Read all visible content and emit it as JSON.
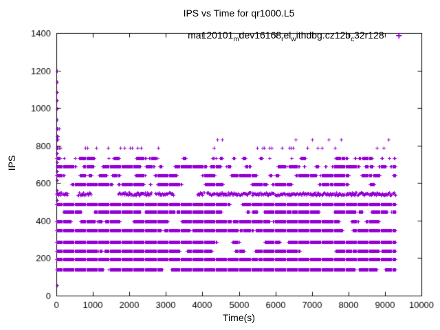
{
  "page": {
    "background": "#ffffff"
  },
  "chart_data": {
    "type": "scatter",
    "title": "IPS vs Time for qr1000.L5",
    "xlabel": "Time(s)",
    "ylabel": "IPS",
    "xlim": [
      0,
      10000
    ],
    "ylim": [
      0,
      1400
    ],
    "xticks": [
      0,
      1000,
      2000,
      3000,
      4000,
      5000,
      6000,
      7000,
      8000,
      9000,
      10000
    ],
    "yticks": [
      0,
      200,
      400,
      600,
      800,
      1000,
      1200,
      1400
    ],
    "grid": false,
    "ticks_mirrored": true,
    "marker": "plus",
    "marker_color": "#9400D3",
    "axis_color": "#000000",
    "legend": {
      "position": "top-right-inside",
      "plain_text": "ma120101_mdev16168_rel_withdbg.cz12b_c32r128",
      "marker_glyph": "+",
      "segments": [
        {
          "text": "ma120101"
        },
        {
          "text": "m",
          "sub": true
        },
        {
          "text": "dev16168"
        },
        {
          "text": "r",
          "sub": true
        },
        {
          "text": "el"
        },
        {
          "text": "w",
          "sub": true
        },
        {
          "text": "ithdbg.cz12b"
        },
        {
          "text": "c",
          "sub": true
        },
        {
          "text": "32r128"
        }
      ]
    },
    "series": {
      "name": "ma120101_mdev16168_rel_withdbg.cz12b_c32r128",
      "t_start": 0,
      "t_max": 9280,
      "sample_step_s": 20,
      "bands": [
        {
          "ips": 139,
          "coverage": 0.8
        },
        {
          "ips": 194,
          "coverage": 0.95
        },
        {
          "ips": 238,
          "coverage": 0.82
        },
        {
          "ips": 286,
          "coverage": 0.84
        },
        {
          "ips": 348,
          "coverage": 0.86
        },
        {
          "ips": 396,
          "coverage": 0.85
        },
        {
          "ips": 447,
          "coverage": 0.87
        },
        {
          "ips": 487,
          "coverage": 0.9
        },
        {
          "ips": 542,
          "coverage": 0.85,
          "jitter_ips": 8
        },
        {
          "ips": 594,
          "coverage": 0.68
        },
        {
          "ips": 641,
          "coverage": 0.55
        },
        {
          "ips": 689,
          "coverage": 0.42
        },
        {
          "ips": 733,
          "coverage": 0.3
        },
        {
          "ips": 788,
          "count": 27
        },
        {
          "ips": 832,
          "count": 7
        }
      ],
      "startup_spike_points": [
        {
          "t": 15,
          "ips": 55
        },
        {
          "t": 12,
          "ips": 510
        },
        {
          "t": 12,
          "ips": 560
        },
        {
          "t": 12,
          "ips": 615
        },
        {
          "t": 12,
          "ips": 662
        },
        {
          "t": 12,
          "ips": 710
        },
        {
          "t": 12,
          "ips": 758
        },
        {
          "t": 12,
          "ips": 788
        },
        {
          "t": 42,
          "ips": 788
        },
        {
          "t": 75,
          "ips": 788
        },
        {
          "t": 110,
          "ips": 788
        },
        {
          "t": 12,
          "ips": 832
        },
        {
          "t": 45,
          "ips": 832
        },
        {
          "t": 12,
          "ips": 850
        },
        {
          "t": 42,
          "ips": 850
        },
        {
          "t": 10,
          "ips": 891
        },
        {
          "t": 40,
          "ips": 891
        },
        {
          "t": 70,
          "ips": 891
        },
        {
          "t": 15,
          "ips": 940
        },
        {
          "t": 15,
          "ips": 996
        },
        {
          "t": 15,
          "ips": 1040
        },
        {
          "t": 15,
          "ips": 1086
        },
        {
          "t": 15,
          "ips": 1141
        },
        {
          "t": 15,
          "ips": 1200
        }
      ]
    }
  }
}
